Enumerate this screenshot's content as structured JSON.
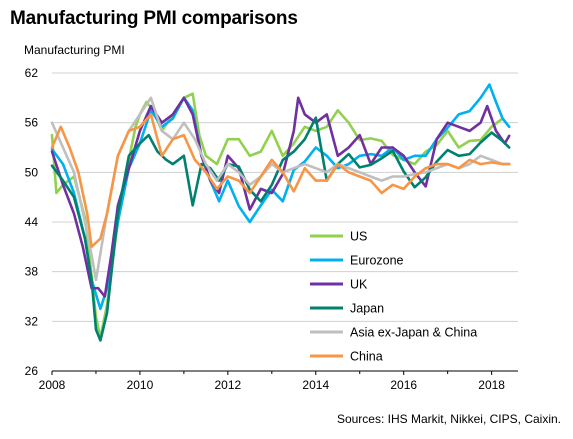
{
  "title": "Manufacturing PMI comparisons",
  "source": "Sources: IHS Markit, Nikkei, CIPS, Caixin.",
  "chart_data": {
    "type": "line",
    "title": "Manufacturing PMI comparisons",
    "ylabel": "Manufacturing PMI",
    "xlabel": "",
    "xlim": [
      2008.0,
      2018.6
    ],
    "ylim": [
      26,
      62
    ],
    "yticks": [
      26,
      32,
      38,
      44,
      50,
      56,
      62
    ],
    "xticks": [
      2008,
      2010,
      2012,
      2014,
      2016,
      2018
    ],
    "grid": "horizontal",
    "legend_position": "lower-right",
    "series": [
      {
        "name": "US",
        "color": "#92d050",
        "points": [
          [
            2008.0,
            54.5
          ],
          [
            2008.1,
            47.5
          ],
          [
            2008.25,
            48.5
          ],
          [
            2008.5,
            49.5
          ],
          [
            2008.75,
            44.5
          ],
          [
            2008.9,
            37.5
          ],
          [
            2009.0,
            32.5
          ],
          [
            2009.1,
            30.0
          ],
          [
            2009.25,
            34.0
          ],
          [
            2009.5,
            44.0
          ],
          [
            2009.75,
            51.5
          ],
          [
            2009.9,
            55.5
          ],
          [
            2010.0,
            57.0
          ],
          [
            2010.15,
            58.5
          ],
          [
            2010.3,
            57.5
          ],
          [
            2010.5,
            55.0
          ],
          [
            2010.75,
            57.0
          ],
          [
            2011.0,
            59.0
          ],
          [
            2011.2,
            59.5
          ],
          [
            2011.35,
            54.5
          ],
          [
            2011.5,
            52.0
          ],
          [
            2011.75,
            51.0
          ],
          [
            2012.0,
            54.0
          ],
          [
            2012.25,
            54.0
          ],
          [
            2012.5,
            52.0
          ],
          [
            2012.75,
            52.5
          ],
          [
            2013.0,
            55.0
          ],
          [
            2013.25,
            52.0
          ],
          [
            2013.5,
            53.5
          ],
          [
            2013.75,
            55.5
          ],
          [
            2014.0,
            55.0
          ],
          [
            2014.25,
            55.5
          ],
          [
            2014.5,
            57.5
          ],
          [
            2014.75,
            56.0
          ],
          [
            2015.0,
            53.9
          ],
          [
            2015.25,
            54.1
          ],
          [
            2015.5,
            53.8
          ],
          [
            2015.75,
            52.1
          ],
          [
            2016.0,
            51.5
          ],
          [
            2016.25,
            51.0
          ],
          [
            2016.5,
            52.5
          ],
          [
            2016.75,
            53.3
          ],
          [
            2017.0,
            55.0
          ],
          [
            2017.25,
            53.0
          ],
          [
            2017.5,
            53.8
          ],
          [
            2017.75,
            53.9
          ],
          [
            2018.0,
            55.5
          ],
          [
            2018.25,
            56.5
          ],
          [
            2018.4,
            55.5
          ]
        ]
      },
      {
        "name": "Eurozone",
        "color": "#00b0f0",
        "points": [
          [
            2008.0,
            52.8
          ],
          [
            2008.25,
            51.0
          ],
          [
            2008.5,
            47.5
          ],
          [
            2008.75,
            42.0
          ],
          [
            2008.9,
            37.0
          ],
          [
            2009.1,
            33.5
          ],
          [
            2009.25,
            36.0
          ],
          [
            2009.5,
            44.0
          ],
          [
            2009.75,
            50.5
          ],
          [
            2010.0,
            53.5
          ],
          [
            2010.25,
            57.5
          ],
          [
            2010.5,
            55.5
          ],
          [
            2010.75,
            56.5
          ],
          [
            2011.0,
            59.0
          ],
          [
            2011.2,
            57.5
          ],
          [
            2011.4,
            52.0
          ],
          [
            2011.6,
            49.0
          ],
          [
            2011.8,
            46.5
          ],
          [
            2012.0,
            49.0
          ],
          [
            2012.25,
            45.9
          ],
          [
            2012.5,
            44.0
          ],
          [
            2012.75,
            46.0
          ],
          [
            2013.0,
            47.9
          ],
          [
            2013.25,
            46.5
          ],
          [
            2013.5,
            50.3
          ],
          [
            2013.75,
            51.3
          ],
          [
            2014.0,
            53.0
          ],
          [
            2014.25,
            52.0
          ],
          [
            2014.5,
            50.5
          ],
          [
            2014.75,
            51.0
          ],
          [
            2015.0,
            52.0
          ],
          [
            2015.25,
            52.2
          ],
          [
            2015.5,
            52.0
          ],
          [
            2015.75,
            53.0
          ],
          [
            2016.0,
            51.5
          ],
          [
            2016.25,
            52.0
          ],
          [
            2016.5,
            52.0
          ],
          [
            2016.75,
            54.0
          ],
          [
            2017.0,
            55.4
          ],
          [
            2017.25,
            57.0
          ],
          [
            2017.5,
            57.4
          ],
          [
            2017.75,
            59.0
          ],
          [
            2017.95,
            60.6
          ],
          [
            2018.1,
            58.5
          ],
          [
            2018.25,
            56.5
          ],
          [
            2018.4,
            55.5
          ]
        ]
      },
      {
        "name": "UK",
        "color": "#7030a0",
        "points": [
          [
            2008.0,
            52.5
          ],
          [
            2008.25,
            48.5
          ],
          [
            2008.5,
            45.0
          ],
          [
            2008.7,
            41.0
          ],
          [
            2008.9,
            36.0
          ],
          [
            2009.05,
            36.0
          ],
          [
            2009.2,
            35.0
          ],
          [
            2009.35,
            40.0
          ],
          [
            2009.5,
            46.0
          ],
          [
            2009.75,
            50.5
          ],
          [
            2010.0,
            55.0
          ],
          [
            2010.25,
            58.0
          ],
          [
            2010.5,
            56.0
          ],
          [
            2010.75,
            57.0
          ],
          [
            2011.0,
            59.0
          ],
          [
            2011.2,
            57.0
          ],
          [
            2011.4,
            52.0
          ],
          [
            2011.6,
            49.0
          ],
          [
            2011.8,
            47.5
          ],
          [
            2012.0,
            52.0
          ],
          [
            2012.25,
            50.5
          ],
          [
            2012.5,
            45.5
          ],
          [
            2012.75,
            48.0
          ],
          [
            2013.0,
            47.5
          ],
          [
            2013.25,
            49.8
          ],
          [
            2013.5,
            55.0
          ],
          [
            2013.6,
            59.0
          ],
          [
            2013.75,
            57.0
          ],
          [
            2014.0,
            56.0
          ],
          [
            2014.25,
            57.0
          ],
          [
            2014.5,
            52.0
          ],
          [
            2014.75,
            53.0
          ],
          [
            2015.0,
            54.5
          ],
          [
            2015.25,
            51.0
          ],
          [
            2015.5,
            53.0
          ],
          [
            2015.75,
            53.0
          ],
          [
            2016.0,
            52.0
          ],
          [
            2016.25,
            50.0
          ],
          [
            2016.5,
            48.3
          ],
          [
            2016.75,
            54.0
          ],
          [
            2017.0,
            56.0
          ],
          [
            2017.25,
            55.5
          ],
          [
            2017.5,
            55.0
          ],
          [
            2017.75,
            56.0
          ],
          [
            2017.9,
            58.0
          ],
          [
            2018.1,
            55.0
          ],
          [
            2018.3,
            53.5
          ],
          [
            2018.4,
            54.4
          ]
        ]
      },
      {
        "name": "Japan",
        "color": "#00806e",
        "points": [
          [
            2008.0,
            50.8
          ],
          [
            2008.25,
            49.0
          ],
          [
            2008.5,
            47.0
          ],
          [
            2008.75,
            42.0
          ],
          [
            2008.9,
            37.0
          ],
          [
            2009.0,
            31.0
          ],
          [
            2009.1,
            29.7
          ],
          [
            2009.25,
            33.0
          ],
          [
            2009.5,
            45.0
          ],
          [
            2009.75,
            52.0
          ],
          [
            2010.0,
            53.5
          ],
          [
            2010.2,
            54.5
          ],
          [
            2010.4,
            52.5
          ],
          [
            2010.6,
            51.5
          ],
          [
            2010.75,
            51.0
          ],
          [
            2011.0,
            52.0
          ],
          [
            2011.2,
            46.0
          ],
          [
            2011.4,
            51.0
          ],
          [
            2011.6,
            50.5
          ],
          [
            2011.8,
            49.0
          ],
          [
            2012.0,
            51.0
          ],
          [
            2012.25,
            50.7
          ],
          [
            2012.5,
            47.9
          ],
          [
            2012.75,
            46.5
          ],
          [
            2013.0,
            48.5
          ],
          [
            2013.25,
            51.5
          ],
          [
            2013.5,
            52.5
          ],
          [
            2013.75,
            54.0
          ],
          [
            2014.0,
            56.6
          ],
          [
            2014.25,
            49.0
          ],
          [
            2014.5,
            51.0
          ],
          [
            2014.75,
            52.2
          ],
          [
            2015.0,
            50.6
          ],
          [
            2015.25,
            50.9
          ],
          [
            2015.5,
            51.7
          ],
          [
            2015.75,
            52.6
          ],
          [
            2016.0,
            50.1
          ],
          [
            2016.25,
            48.2
          ],
          [
            2016.5,
            49.4
          ],
          [
            2016.75,
            51.3
          ],
          [
            2017.0,
            52.7
          ],
          [
            2017.25,
            52.0
          ],
          [
            2017.5,
            52.2
          ],
          [
            2017.75,
            53.6
          ],
          [
            2018.0,
            54.8
          ],
          [
            2018.25,
            53.8
          ],
          [
            2018.4,
            53.0
          ]
        ]
      },
      {
        "name": "Asia ex-Japan & China",
        "color": "#bfbfbf",
        "points": [
          [
            2008.0,
            56.0
          ],
          [
            2008.25,
            53.0
          ],
          [
            2008.5,
            50.0
          ],
          [
            2008.75,
            44.0
          ],
          [
            2008.9,
            40.0
          ],
          [
            2009.0,
            37.0
          ],
          [
            2009.25,
            45.0
          ],
          [
            2009.5,
            52.0
          ],
          [
            2009.75,
            55.0
          ],
          [
            2010.0,
            57.0
          ],
          [
            2010.25,
            59.0
          ],
          [
            2010.5,
            55.0
          ],
          [
            2010.75,
            54.0
          ],
          [
            2011.0,
            56.0
          ],
          [
            2011.25,
            54.0
          ],
          [
            2011.5,
            51.0
          ],
          [
            2011.75,
            49.0
          ],
          [
            2012.0,
            51.0
          ],
          [
            2012.25,
            50.0
          ],
          [
            2012.5,
            48.5
          ],
          [
            2012.75,
            49.5
          ],
          [
            2013.0,
            51.0
          ],
          [
            2013.25,
            50.0
          ],
          [
            2013.5,
            50.5
          ],
          [
            2013.75,
            51.0
          ],
          [
            2014.0,
            50.5
          ],
          [
            2014.25,
            50.0
          ],
          [
            2014.5,
            51.0
          ],
          [
            2014.75,
            50.5
          ],
          [
            2015.0,
            50.0
          ],
          [
            2015.25,
            49.5
          ],
          [
            2015.5,
            49.0
          ],
          [
            2015.75,
            49.5
          ],
          [
            2016.0,
            49.5
          ],
          [
            2016.25,
            49.8
          ],
          [
            2016.5,
            50.0
          ],
          [
            2016.75,
            50.5
          ],
          [
            2017.0,
            51.0
          ],
          [
            2017.25,
            50.5
          ],
          [
            2017.5,
            51.0
          ],
          [
            2017.75,
            52.0
          ],
          [
            2018.0,
            51.5
          ],
          [
            2018.25,
            51.0
          ],
          [
            2018.4,
            51.0
          ]
        ]
      },
      {
        "name": "China",
        "color": "#f79646",
        "points": [
          [
            2008.0,
            53.0
          ],
          [
            2008.2,
            55.5
          ],
          [
            2008.4,
            53.0
          ],
          [
            2008.6,
            50.0
          ],
          [
            2008.8,
            45.0
          ],
          [
            2008.9,
            41.0
          ],
          [
            2009.1,
            42.0
          ],
          [
            2009.25,
            45.0
          ],
          [
            2009.5,
            52.0
          ],
          [
            2009.75,
            55.0
          ],
          [
            2010.0,
            55.5
          ],
          [
            2010.25,
            57.0
          ],
          [
            2010.5,
            52.0
          ],
          [
            2010.75,
            54.0
          ],
          [
            2011.0,
            54.5
          ],
          [
            2011.25,
            51.5
          ],
          [
            2011.5,
            50.0
          ],
          [
            2011.75,
            48.0
          ],
          [
            2012.0,
            49.5
          ],
          [
            2012.25,
            49.0
          ],
          [
            2012.5,
            47.5
          ],
          [
            2012.75,
            49.5
          ],
          [
            2013.0,
            51.5
          ],
          [
            2013.25,
            50.0
          ],
          [
            2013.5,
            47.7
          ],
          [
            2013.75,
            50.5
          ],
          [
            2014.0,
            49.0
          ],
          [
            2014.25,
            49.0
          ],
          [
            2014.5,
            51.0
          ],
          [
            2014.75,
            50.0
          ],
          [
            2015.0,
            49.5
          ],
          [
            2015.25,
            49.0
          ],
          [
            2015.5,
            47.5
          ],
          [
            2015.75,
            48.5
          ],
          [
            2016.0,
            48.0
          ],
          [
            2016.25,
            49.5
          ],
          [
            2016.5,
            50.5
          ],
          [
            2016.75,
            51.0
          ],
          [
            2017.0,
            51.0
          ],
          [
            2017.25,
            50.5
          ],
          [
            2017.5,
            51.5
          ],
          [
            2017.75,
            51.0
          ],
          [
            2018.0,
            51.2
          ],
          [
            2018.25,
            51.0
          ],
          [
            2018.4,
            51.0
          ]
        ]
      }
    ]
  }
}
